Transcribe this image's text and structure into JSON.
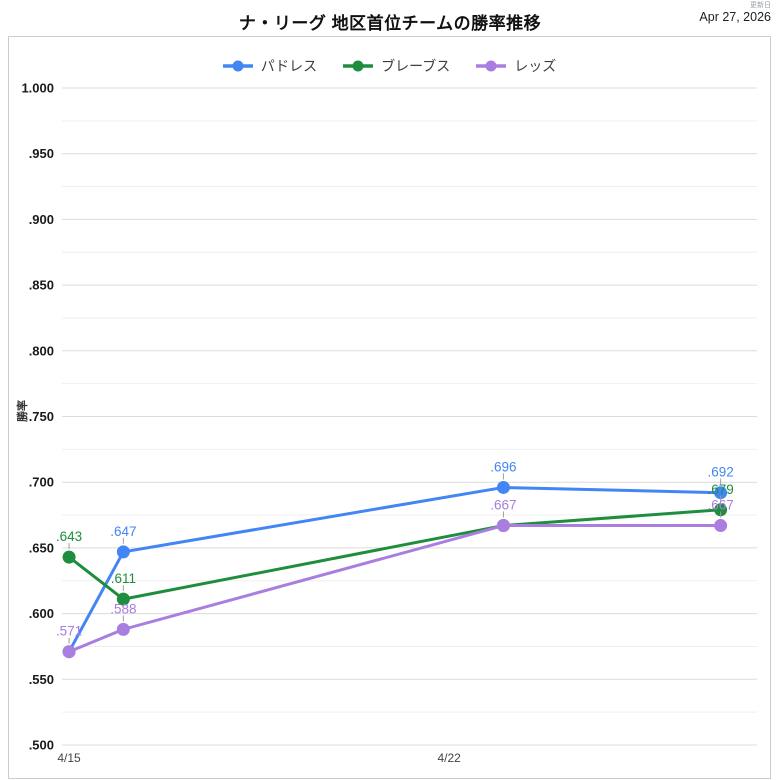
{
  "header": {
    "title": "ナ・リーグ 地区首位チームの勝率推移",
    "updated_label": "更新日",
    "updated_date": "Apr 27, 2026"
  },
  "chart_data": {
    "type": "line",
    "title": "ナ・リーグ 地区首位チームの勝率推移",
    "xlabel": "",
    "ylabel": "勝率",
    "x": [
      15,
      16,
      23,
      27
    ],
    "x_tick_labels": [
      {
        "value": 15,
        "label": "4/15"
      },
      {
        "value": 22,
        "label": "4/22"
      }
    ],
    "xlim": [
      14.87,
      27.67
    ],
    "ylim": [
      0.5,
      1.0
    ],
    "y_minor_step": 0.025,
    "grid": true,
    "legend_position": "top",
    "y_ticks": [
      {
        "value": 1.0,
        "label": "1.000"
      },
      {
        "value": 0.95,
        "label": ".950"
      },
      {
        "value": 0.9,
        "label": ".900"
      },
      {
        "value": 0.85,
        "label": ".850"
      },
      {
        "value": 0.8,
        "label": ".800"
      },
      {
        "value": 0.75,
        "label": ".750"
      },
      {
        "value": 0.7,
        "label": ".700"
      },
      {
        "value": 0.65,
        "label": ".650"
      },
      {
        "value": 0.6,
        "label": ".600"
      },
      {
        "value": 0.55,
        "label": ".550"
      },
      {
        "value": 0.5,
        "label": ".500"
      }
    ],
    "series": [
      {
        "name": "パドレス",
        "color": "#4285f4",
        "values": [
          0.571,
          0.647,
          0.696,
          0.692
        ],
        "point_labels": [
          null,
          ".647",
          ".696",
          ".692"
        ]
      },
      {
        "name": "ブレーブス",
        "color": "#1e8e3e",
        "values": [
          0.643,
          0.611,
          0.667,
          0.679
        ],
        "point_labels": [
          ".643",
          ".611",
          null,
          ".679"
        ]
      },
      {
        "name": "レッズ",
        "color": "#aa7de0",
        "values": [
          0.571,
          0.588,
          0.667,
          0.667
        ],
        "point_labels": [
          ".571",
          ".588",
          ".667",
          ".667"
        ]
      }
    ],
    "colors": {
      "grid_major": "#dcdcdc",
      "grid_minor": "#efefef",
      "stem": "#9e9e9e",
      "y_tick_text": "#1a1a1a",
      "x_tick_text": "#444444",
      "legend_text": "#3c4043",
      "border": "#cccccc"
    }
  }
}
